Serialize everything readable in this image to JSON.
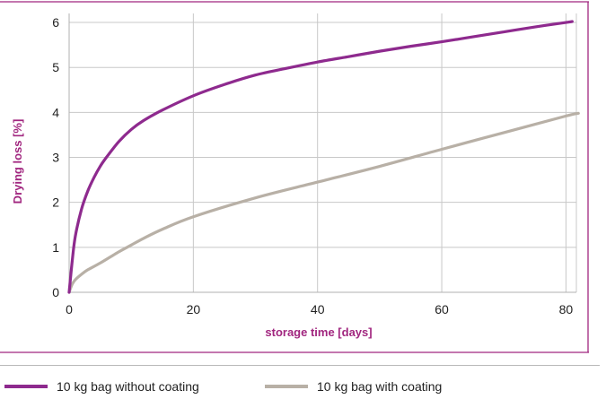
{
  "chart_data": {
    "type": "line",
    "xlabel": "storage time [days]",
    "ylabel": "Drying loss [%]",
    "xlim": [
      0,
      85
    ],
    "ylim": [
      0,
      6.2
    ],
    "xticks": [
      0,
      20,
      40,
      60,
      80
    ],
    "yticks": [
      0,
      1,
      2,
      3,
      4,
      5,
      6
    ],
    "grid": true,
    "legend_position": "bottom",
    "series": [
      {
        "name": "10 kg bag without coating",
        "color": "#8e2a8e",
        "x": [
          0,
          0.5,
          1,
          2,
          3,
          4,
          5,
          6,
          8,
          10,
          12,
          15,
          20,
          25,
          30,
          35,
          40,
          45,
          50,
          55,
          60,
          65,
          70,
          75,
          80,
          81
        ],
        "y": [
          0,
          0.7,
          1.25,
          1.85,
          2.25,
          2.55,
          2.8,
          3.0,
          3.35,
          3.62,
          3.82,
          4.05,
          4.37,
          4.62,
          4.83,
          4.98,
          5.12,
          5.24,
          5.36,
          5.47,
          5.57,
          5.68,
          5.79,
          5.9,
          6.0,
          6.02
        ]
      },
      {
        "name": "10 kg bag with coating",
        "color": "#b8b0a6",
        "x": [
          0,
          0.5,
          1,
          2,
          3,
          5,
          8,
          10,
          12,
          15,
          20,
          30,
          40,
          50,
          60,
          70,
          80,
          82
        ],
        "y": [
          0,
          0.18,
          0.28,
          0.4,
          0.5,
          0.65,
          0.9,
          1.05,
          1.2,
          1.4,
          1.68,
          2.1,
          2.45,
          2.8,
          3.18,
          3.55,
          3.92,
          3.98
        ]
      }
    ]
  }
}
